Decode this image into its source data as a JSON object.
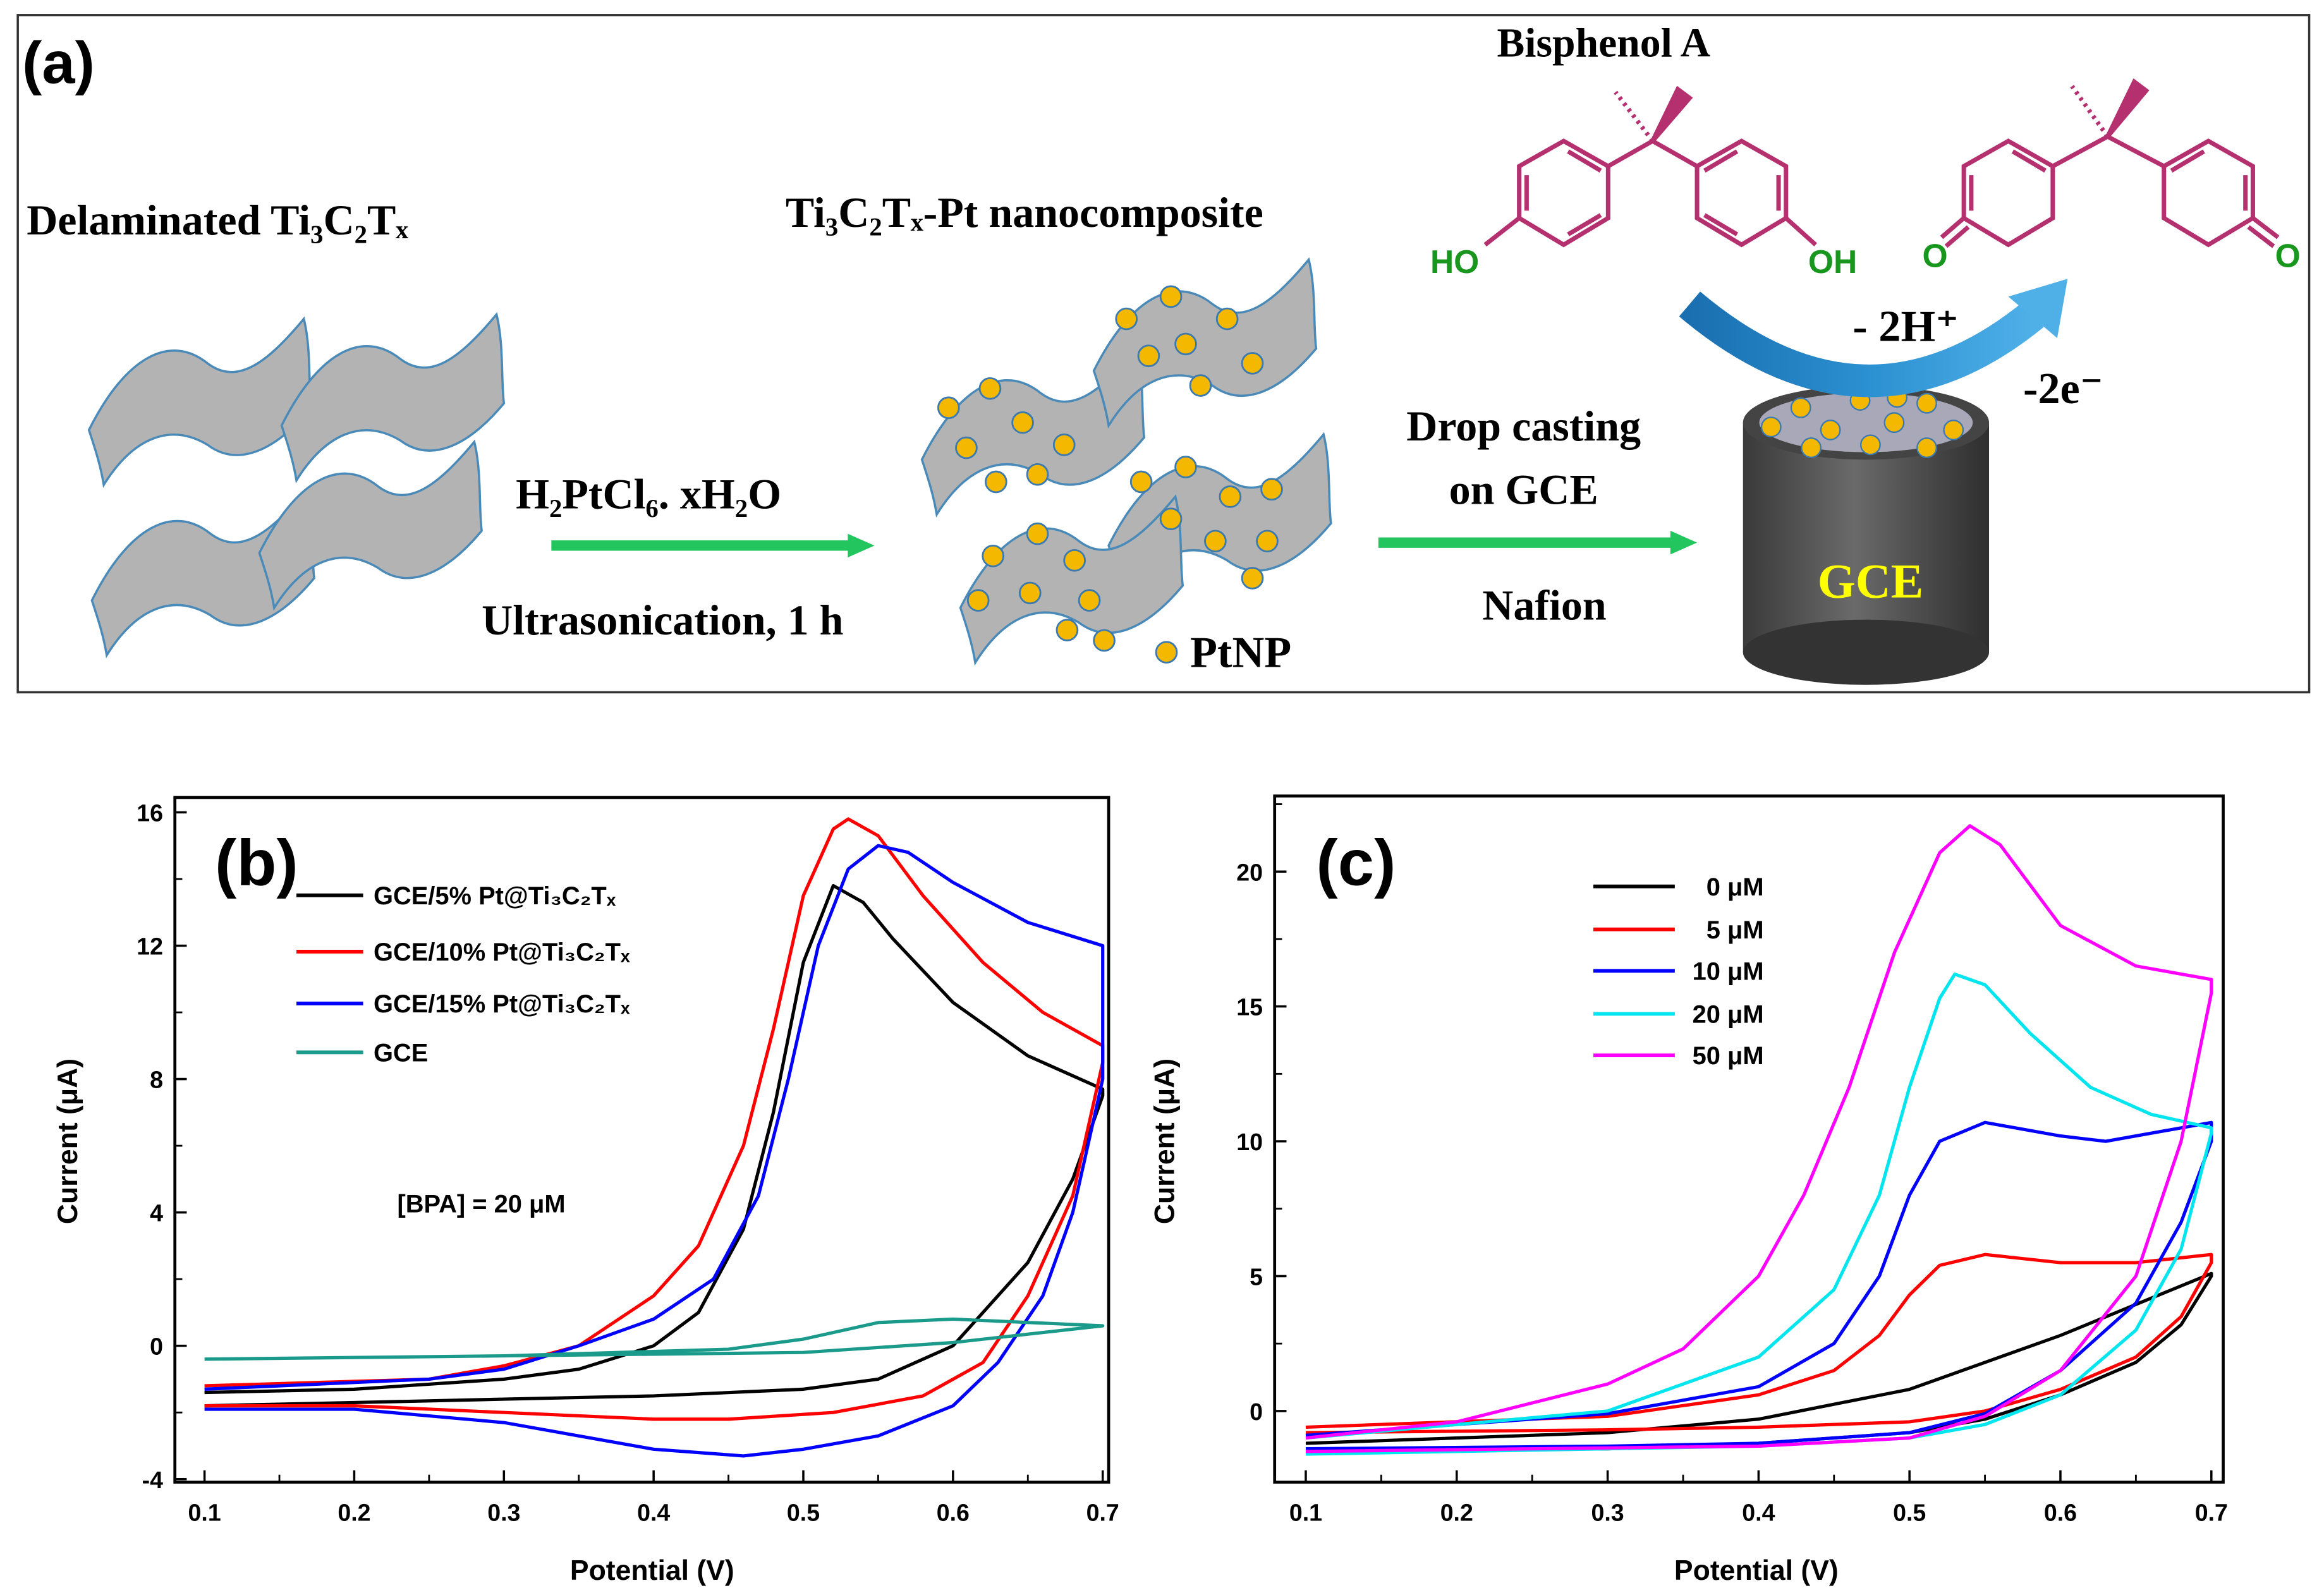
{
  "panel_a": {
    "label": "(a)",
    "delaminated": "Delaminated Ti₃C₂Tₓ",
    "nanocomposite": "Ti₃C₂Tₓ-Pt nanocomposite",
    "reagent": "H₂PtCl₆. xH₂O",
    "ultrasonication": "Ultrasonication, 1 h",
    "ptnp": "PtNP",
    "drop_casting_1": "Drop casting",
    "drop_casting_2": "on GCE",
    "nafion": "Nafion",
    "electrode": "GCE",
    "bisphenol": "Bisphenol A",
    "ho": "HO",
    "oh": "OH",
    "o_left": "O",
    "o_right": "O",
    "proton": "- 2H⁺",
    "electron": "-2e⁻",
    "colors": {
      "arrow": "#22c55e",
      "sheet": "#b3b3b3",
      "dot": "#f5b800",
      "molecule": "#b5306e",
      "hydroxyl": "#18961e",
      "electrode_text": "#ffff00",
      "reaction_arrow": "#1f7fc0"
    }
  },
  "chart_data": [
    {
      "panel": "(b)",
      "type": "line",
      "xlabel": "Potential (V)",
      "ylabel": "Current (μA)",
      "xlim": [
        0.1,
        0.7
      ],
      "ylim": [
        -4,
        16
      ],
      "xticks": [
        "0.1",
        "0.2",
        "0.3",
        "0.4",
        "0.5",
        "0.6",
        "0.7"
      ],
      "yticks": [
        "-4",
        "0",
        "4",
        "8",
        "12",
        "16"
      ],
      "annotation": "[BPA] = 20 μM",
      "legend_position": "top-left",
      "series": [
        {
          "name": "GCE/5% Pt@Ti₃C₂Tₓ",
          "color": "#000000",
          "points": [
            [
              0.1,
              -1.4
            ],
            [
              0.2,
              -1.3
            ],
            [
              0.3,
              -1.0
            ],
            [
              0.35,
              -0.7
            ],
            [
              0.4,
              0
            ],
            [
              0.43,
              1
            ],
            [
              0.46,
              3.5
            ],
            [
              0.48,
              7
            ],
            [
              0.5,
              11.5
            ],
            [
              0.52,
              13.8
            ],
            [
              0.54,
              13.3
            ],
            [
              0.56,
              12.2
            ],
            [
              0.6,
              10.3
            ],
            [
              0.65,
              8.7
            ],
            [
              0.7,
              7.7
            ],
            [
              0.7,
              7.5
            ],
            [
              0.68,
              5
            ],
            [
              0.65,
              2.5
            ],
            [
              0.6,
              0
            ],
            [
              0.55,
              -1
            ],
            [
              0.5,
              -1.3
            ],
            [
              0.4,
              -1.5
            ],
            [
              0.3,
              -1.6
            ],
            [
              0.2,
              -1.7
            ],
            [
              0.1,
              -1.8
            ]
          ]
        },
        {
          "name": "GCE/10% Pt@Ti₃C₂Tₓ",
          "color": "#ff0000",
          "points": [
            [
              0.1,
              -1.2
            ],
            [
              0.25,
              -1.0
            ],
            [
              0.3,
              -0.6
            ],
            [
              0.35,
              0
            ],
            [
              0.4,
              1.5
            ],
            [
              0.43,
              3
            ],
            [
              0.46,
              6
            ],
            [
              0.48,
              9.5
            ],
            [
              0.5,
              13.5
            ],
            [
              0.52,
              15.5
            ],
            [
              0.53,
              15.8
            ],
            [
              0.55,
              15.3
            ],
            [
              0.58,
              13.5
            ],
            [
              0.62,
              11.5
            ],
            [
              0.66,
              10
            ],
            [
              0.7,
              9
            ],
            [
              0.7,
              8.5
            ],
            [
              0.68,
              4.5
            ],
            [
              0.65,
              1.5
            ],
            [
              0.62,
              -0.5
            ],
            [
              0.58,
              -1.5
            ],
            [
              0.52,
              -2.0
            ],
            [
              0.45,
              -2.2
            ],
            [
              0.4,
              -2.2
            ],
            [
              0.3,
              -2.0
            ],
            [
              0.2,
              -1.8
            ],
            [
              0.1,
              -1.8
            ]
          ]
        },
        {
          "name": "GCE/15% Pt@Ti₃C₂Tₓ",
          "color": "#0000ff",
          "points": [
            [
              0.1,
              -1.3
            ],
            [
              0.25,
              -1.0
            ],
            [
              0.3,
              -0.7
            ],
            [
              0.35,
              0
            ],
            [
              0.4,
              0.8
            ],
            [
              0.44,
              2
            ],
            [
              0.47,
              4.5
            ],
            [
              0.49,
              8
            ],
            [
              0.51,
              12
            ],
            [
              0.53,
              14.3
            ],
            [
              0.55,
              15
            ],
            [
              0.57,
              14.8
            ],
            [
              0.6,
              13.9
            ],
            [
              0.65,
              12.7
            ],
            [
              0.7,
              12
            ],
            [
              0.7,
              8
            ],
            [
              0.695,
              7
            ],
            [
              0.68,
              4
            ],
            [
              0.66,
              1.5
            ],
            [
              0.63,
              -0.5
            ],
            [
              0.6,
              -1.8
            ],
            [
              0.55,
              -2.7
            ],
            [
              0.5,
              -3.1
            ],
            [
              0.46,
              -3.3
            ],
            [
              0.4,
              -3.1
            ],
            [
              0.3,
              -2.3
            ],
            [
              0.2,
              -1.9
            ],
            [
              0.1,
              -1.9
            ]
          ]
        },
        {
          "name": "GCE",
          "color": "#1a9a8a",
          "points": [
            [
              0.1,
              -0.4
            ],
            [
              0.3,
              -0.3
            ],
            [
              0.45,
              -0.1
            ],
            [
              0.5,
              0.2
            ],
            [
              0.55,
              0.7
            ],
            [
              0.6,
              0.8
            ],
            [
              0.7,
              0.6
            ],
            [
              0.6,
              0.1
            ],
            [
              0.5,
              -0.2
            ],
            [
              0.3,
              -0.3
            ],
            [
              0.1,
              -0.4
            ]
          ]
        }
      ]
    },
    {
      "panel": "(c)",
      "type": "line",
      "xlabel": "Potential (V)",
      "ylabel": "Current (μA)",
      "xlim": [
        0.1,
        0.7
      ],
      "ylim": [
        -2.6,
        22.8
      ],
      "xticks": [
        "0.1",
        "0.2",
        "0.3",
        "0.4",
        "0.5",
        "0.6",
        "0.7"
      ],
      "yticks": [
        "0",
        "5",
        "10",
        "15",
        "20"
      ],
      "legend_position": "top-center",
      "series": [
        {
          "name": "0 μM",
          "color": "#000000",
          "points": [
            [
              0.1,
              -1.2
            ],
            [
              0.3,
              -0.8
            ],
            [
              0.4,
              -0.3
            ],
            [
              0.5,
              0.8
            ],
            [
              0.6,
              2.8
            ],
            [
              0.7,
              5.1
            ],
            [
              0.7,
              5.0
            ],
            [
              0.68,
              3.2
            ],
            [
              0.65,
              1.8
            ],
            [
              0.6,
              0.6
            ],
            [
              0.55,
              -0.3
            ],
            [
              0.5,
              -0.8
            ],
            [
              0.4,
              -1.2
            ],
            [
              0.3,
              -1.4
            ],
            [
              0.1,
              -1.5
            ]
          ]
        },
        {
          "name": "5 μM",
          "color": "#ff0000",
          "points": [
            [
              0.1,
              -0.6
            ],
            [
              0.3,
              -0.2
            ],
            [
              0.4,
              0.6
            ],
            [
              0.45,
              1.5
            ],
            [
              0.48,
              2.8
            ],
            [
              0.5,
              4.3
            ],
            [
              0.52,
              5.4
            ],
            [
              0.55,
              5.8
            ],
            [
              0.6,
              5.5
            ],
            [
              0.65,
              5.5
            ],
            [
              0.7,
              5.8
            ],
            [
              0.7,
              5.5
            ],
            [
              0.68,
              3.5
            ],
            [
              0.65,
              2
            ],
            [
              0.6,
              0.8
            ],
            [
              0.55,
              0
            ],
            [
              0.5,
              -0.4
            ],
            [
              0.4,
              -0.6
            ],
            [
              0.3,
              -0.7
            ],
            [
              0.1,
              -0.8
            ]
          ]
        },
        {
          "name": "10 μM",
          "color": "#0000ff",
          "points": [
            [
              0.1,
              -0.9
            ],
            [
              0.3,
              -0.1
            ],
            [
              0.4,
              0.9
            ],
            [
              0.45,
              2.5
            ],
            [
              0.48,
              5
            ],
            [
              0.5,
              8
            ],
            [
              0.52,
              10
            ],
            [
              0.55,
              10.7
            ],
            [
              0.6,
              10.2
            ],
            [
              0.63,
              10
            ],
            [
              0.7,
              10.7
            ],
            [
              0.7,
              10
            ],
            [
              0.68,
              7
            ],
            [
              0.65,
              4
            ],
            [
              0.6,
              1.5
            ],
            [
              0.55,
              -0.1
            ],
            [
              0.5,
              -0.8
            ],
            [
              0.4,
              -1.2
            ],
            [
              0.3,
              -1.3
            ],
            [
              0.1,
              -1.4
            ]
          ]
        },
        {
          "name": "20 μM",
          "color": "#00e5ee",
          "points": [
            [
              0.1,
              -1.0
            ],
            [
              0.3,
              0
            ],
            [
              0.4,
              2
            ],
            [
              0.45,
              4.5
            ],
            [
              0.48,
              8
            ],
            [
              0.5,
              12
            ],
            [
              0.52,
              15.3
            ],
            [
              0.53,
              16.2
            ],
            [
              0.55,
              15.8
            ],
            [
              0.58,
              14
            ],
            [
              0.62,
              12
            ],
            [
              0.66,
              11
            ],
            [
              0.7,
              10.5
            ],
            [
              0.7,
              10.3
            ],
            [
              0.68,
              6
            ],
            [
              0.65,
              3
            ],
            [
              0.6,
              0.6
            ],
            [
              0.55,
              -0.5
            ],
            [
              0.5,
              -1.0
            ],
            [
              0.4,
              -1.3
            ],
            [
              0.1,
              -1.6
            ]
          ]
        },
        {
          "name": "50 μM",
          "color": "#ff00ff",
          "points": [
            [
              0.1,
              -1.0
            ],
            [
              0.2,
              -0.4
            ],
            [
              0.3,
              1.0
            ],
            [
              0.35,
              2.3
            ],
            [
              0.4,
              5
            ],
            [
              0.43,
              8
            ],
            [
              0.46,
              12
            ],
            [
              0.49,
              17
            ],
            [
              0.52,
              20.7
            ],
            [
              0.54,
              21.7
            ],
            [
              0.56,
              21
            ],
            [
              0.6,
              18
            ],
            [
              0.65,
              16.5
            ],
            [
              0.7,
              16
            ],
            [
              0.7,
              15.5
            ],
            [
              0.68,
              10
            ],
            [
              0.65,
              5
            ],
            [
              0.6,
              1.5
            ],
            [
              0.55,
              -0.2
            ],
            [
              0.5,
              -1.0
            ],
            [
              0.4,
              -1.3
            ],
            [
              0.1,
              -1.5
            ]
          ]
        }
      ]
    }
  ]
}
